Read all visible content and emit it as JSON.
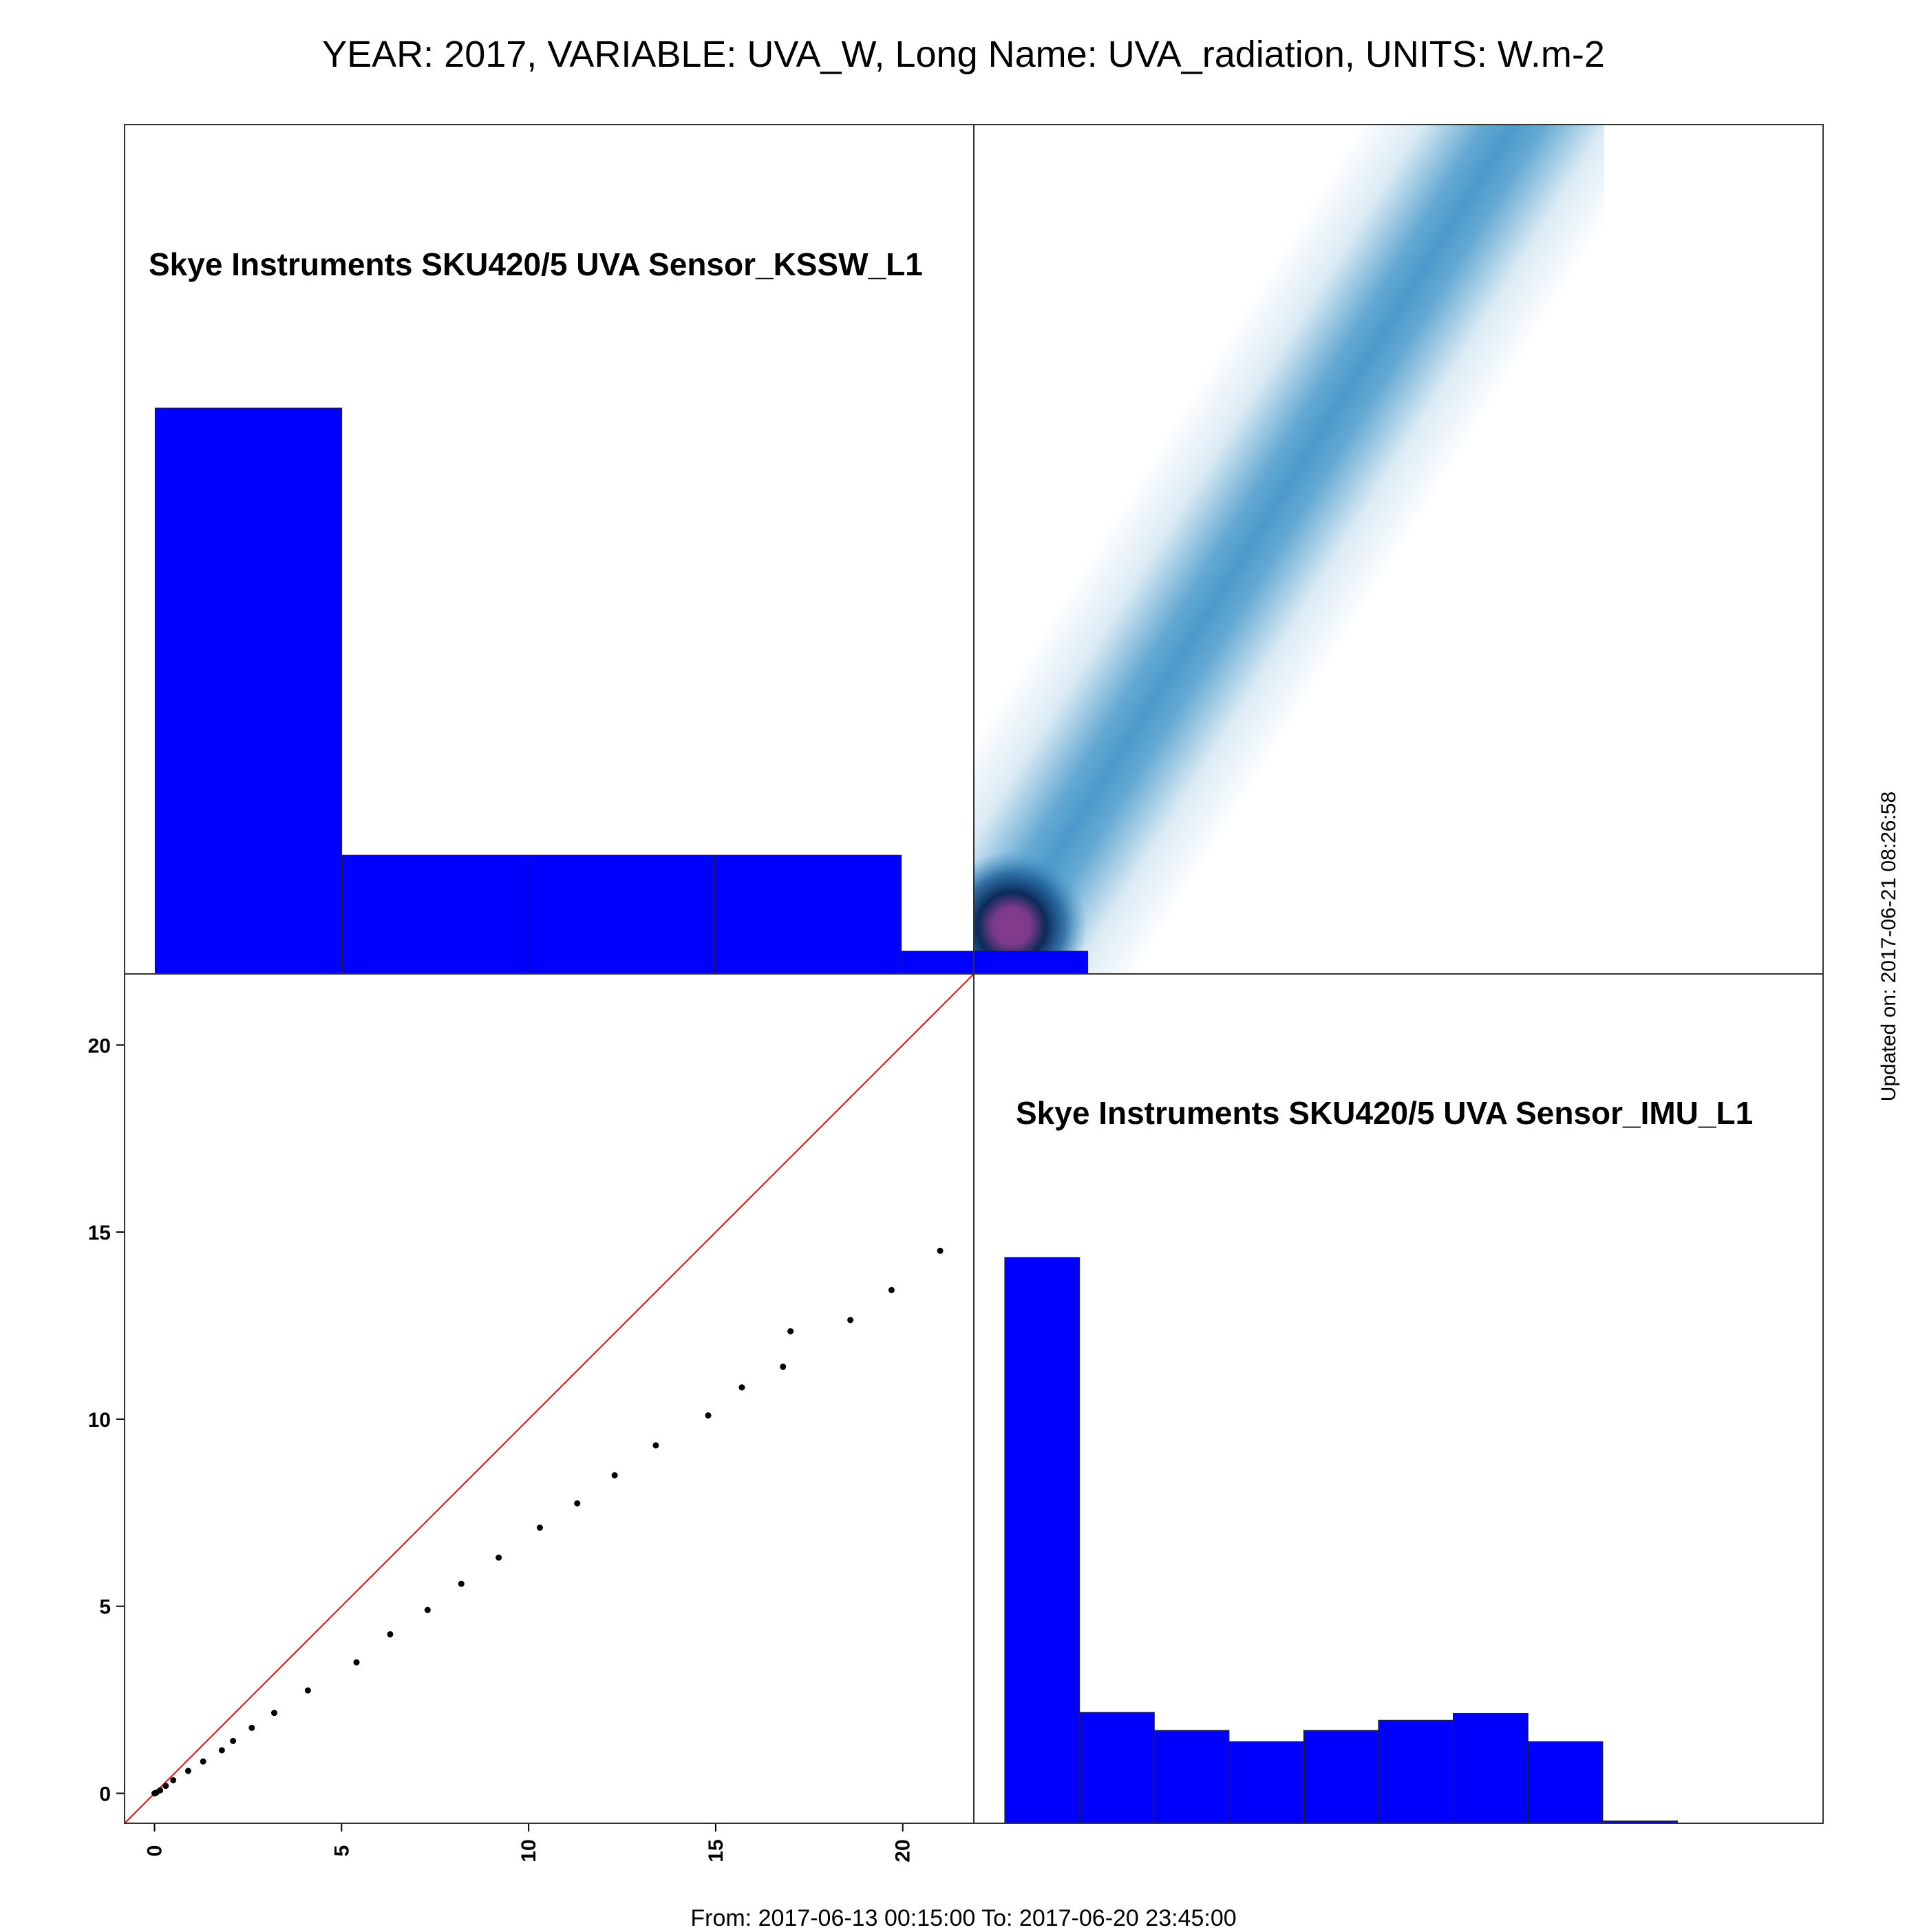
{
  "header": {
    "title": "YEAR: 2017, VARIABLE: UVA_W, Long Name: UVA_radiation, UNITS: W.m-2"
  },
  "footer": {
    "range": "From: 2017-06-13 00:15:00 To: 2017-06-20 23:45:00"
  },
  "side": {
    "updated": "Updated on: 2017-06-21 08:26:58"
  },
  "colors": {
    "hist_fill": "#0000ff",
    "identity_line": "#ff0000",
    "density": "#4a9acb",
    "density_peak": "#8a3c8a"
  },
  "chart_data": [
    {
      "type": "bar",
      "panel": "top-left",
      "label": "Skye Instruments SKU420/5 UVA Sensor_KSSW_L1",
      "bin_edges": [
        0,
        5,
        10,
        15,
        20,
        25
      ],
      "values": [
        1.0,
        0.21,
        0.21,
        0.21,
        0.04
      ]
    },
    {
      "type": "bar",
      "panel": "bottom-right",
      "label": "Skye Instruments SKU420/5 UVA Sensor_IMU_L1",
      "bin_edges": [
        0,
        2,
        4,
        6,
        8,
        10,
        12,
        14,
        16,
        18
      ],
      "values": [
        1.0,
        0.196,
        0.164,
        0.144,
        0.164,
        0.182,
        0.194,
        0.144,
        0.004
      ]
    },
    {
      "type": "heatmap",
      "panel": "top-right",
      "description_axis": "density of KSSW vs IMU",
      "peak": [
        1,
        1
      ]
    },
    {
      "type": "scatter",
      "panel": "bottom-left",
      "x_ticks": [
        "0",
        "5",
        "10",
        "15",
        "20"
      ],
      "y_ticks": [
        "0",
        "5",
        "10",
        "15",
        "20"
      ],
      "xlim": [
        -0.8,
        21.9
      ],
      "ylim": [
        -0.8,
        21.9
      ],
      "reference_line": "y = x",
      "points": [
        [
          0.0,
          0.0
        ],
        [
          0.05,
          0.02
        ],
        [
          0.15,
          0.08
        ],
        [
          0.3,
          0.2
        ],
        [
          0.5,
          0.35
        ],
        [
          0.9,
          0.6
        ],
        [
          1.3,
          0.85
        ],
        [
          1.8,
          1.15
        ],
        [
          2.1,
          1.4
        ],
        [
          2.6,
          1.75
        ],
        [
          3.2,
          2.15
        ],
        [
          4.1,
          2.75
        ],
        [
          5.4,
          3.5
        ],
        [
          6.3,
          4.25
        ],
        [
          7.3,
          4.9
        ],
        [
          8.2,
          5.6
        ],
        [
          9.2,
          6.3
        ],
        [
          10.3,
          7.1
        ],
        [
          11.3,
          7.75
        ],
        [
          12.3,
          8.5
        ],
        [
          13.4,
          9.3
        ],
        [
          14.8,
          10.1
        ],
        [
          15.7,
          10.85
        ],
        [
          16.8,
          11.4
        ],
        [
          17.0,
          12.35
        ],
        [
          18.6,
          12.65
        ],
        [
          19.7,
          13.45
        ],
        [
          21.0,
          14.5
        ]
      ]
    }
  ]
}
